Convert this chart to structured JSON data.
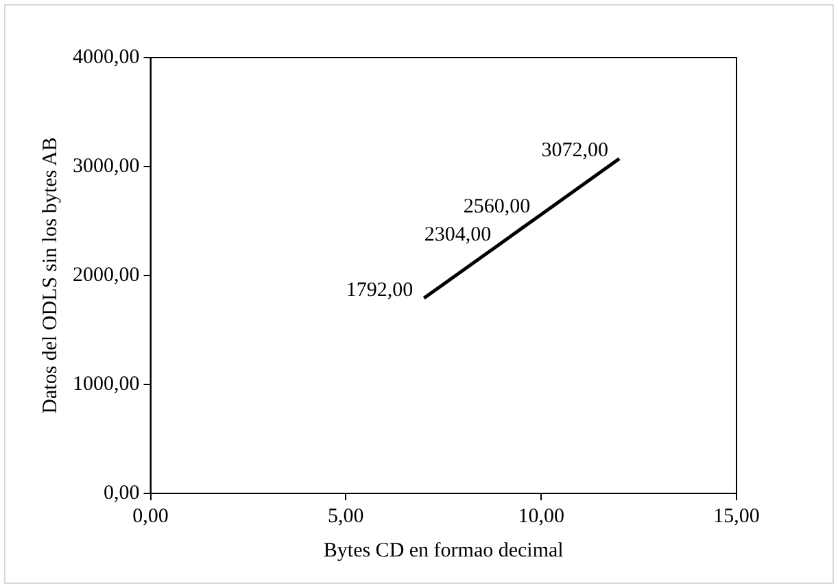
{
  "chart_data": {
    "type": "line",
    "xlabel": "Bytes CD en formao decimal",
    "ylabel": "Datos del ODLS sin los bytes AB",
    "x": [
      7,
      9,
      10,
      12
    ],
    "series": [
      {
        "color": "#000000",
        "values": [
          1792,
          2304,
          2560,
          3072
        ],
        "value_labels": [
          "1792,00",
          "2304,00",
          "2560,00",
          "3072,00"
        ]
      }
    ],
    "xlim": [
      0,
      15
    ],
    "xticks": [
      {
        "value": 0,
        "label": "0,00"
      },
      {
        "value": 5,
        "label": "5,00"
      },
      {
        "value": 10,
        "label": "10,00"
      },
      {
        "value": 15,
        "label": "15,00"
      }
    ],
    "ylim": [
      0,
      4000
    ],
    "yticks": [
      {
        "value": 0,
        "label": "0,00"
      },
      {
        "value": 1000,
        "label": "1000,00"
      },
      {
        "value": 2000,
        "label": "2000,00"
      },
      {
        "value": 3000,
        "label": "3000,00"
      },
      {
        "value": 4000,
        "label": "4000,00"
      }
    ],
    "grid": false,
    "legend": false,
    "marker": "none",
    "line_style": "solid"
  }
}
